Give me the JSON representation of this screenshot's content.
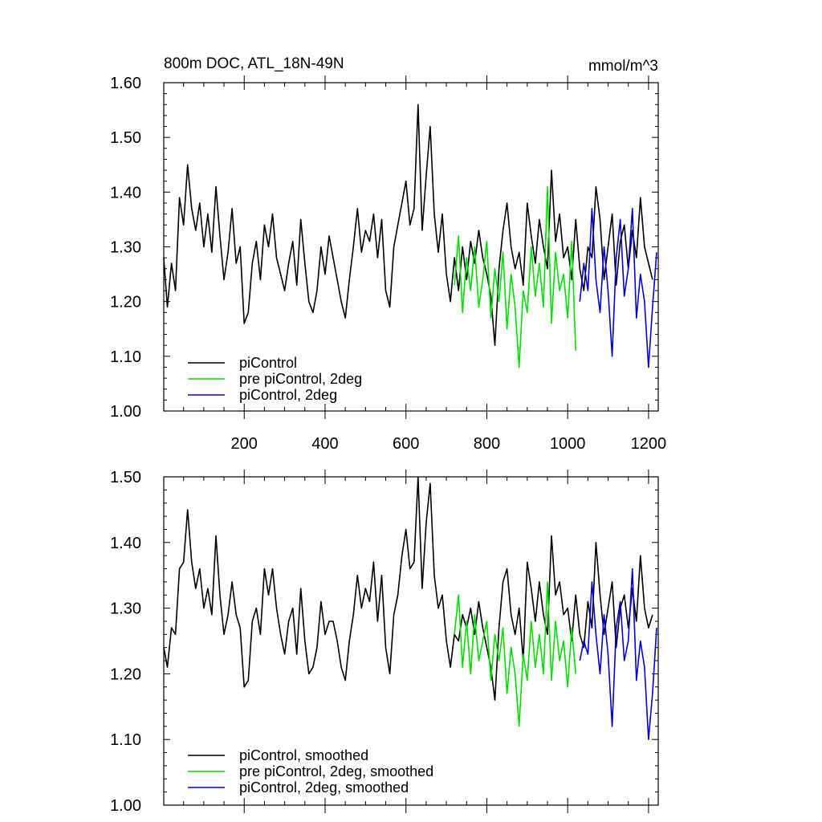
{
  "chart_data": [
    {
      "type": "line",
      "title": "800m DOC, ATL_18N-49N",
      "units": "mmol/m^3",
      "xlim": [
        1,
        1224
      ],
      "ylim": [
        1.0,
        1.6
      ],
      "yticks": [
        1.0,
        1.1,
        1.2,
        1.3,
        1.4,
        1.5,
        1.6
      ],
      "ytick_labels": [
        "1.00",
        "1.10",
        "1.20",
        "1.30",
        "1.40",
        "1.50",
        "1.60"
      ],
      "xticks": [
        200,
        400,
        600,
        800,
        1000,
        1200
      ],
      "xtick_labels": [
        "200",
        "400",
        "600",
        "800",
        "1000",
        "1200"
      ],
      "legend_position": "bottom-left",
      "series": [
        {
          "name": "piControl",
          "color": "#000000",
          "x": [
            1,
            10,
            20,
            30,
            40,
            50,
            60,
            70,
            80,
            90,
            100,
            110,
            120,
            130,
            140,
            150,
            160,
            170,
            180,
            190,
            200,
            210,
            220,
            230,
            240,
            250,
            260,
            270,
            280,
            290,
            300,
            310,
            320,
            330,
            340,
            350,
            360,
            370,
            380,
            390,
            400,
            410,
            420,
            430,
            440,
            450,
            460,
            470,
            480,
            490,
            500,
            510,
            520,
            530,
            540,
            550,
            560,
            570,
            580,
            590,
            600,
            610,
            620,
            630,
            640,
            650,
            660,
            670,
            680,
            690,
            700,
            710,
            720,
            730,
            740,
            750,
            760,
            770,
            780,
            790,
            800,
            810,
            820,
            830,
            840,
            850,
            860,
            870,
            880,
            890,
            900,
            910,
            920,
            930,
            940,
            950,
            960,
            970,
            980,
            990,
            1000,
            1010,
            1020,
            1030,
            1040,
            1050,
            1060,
            1070,
            1080,
            1090,
            1100,
            1110,
            1120,
            1130,
            1140,
            1150,
            1160,
            1170,
            1180,
            1190,
            1200,
            1210
          ],
          "values": [
            1.28,
            1.19,
            1.27,
            1.22,
            1.39,
            1.34,
            1.45,
            1.37,
            1.33,
            1.38,
            1.3,
            1.36,
            1.29,
            1.41,
            1.32,
            1.24,
            1.29,
            1.37,
            1.27,
            1.3,
            1.16,
            1.18,
            1.27,
            1.31,
            1.24,
            1.34,
            1.3,
            1.36,
            1.28,
            1.25,
            1.22,
            1.27,
            1.31,
            1.23,
            1.35,
            1.27,
            1.2,
            1.18,
            1.22,
            1.3,
            1.25,
            1.32,
            1.28,
            1.24,
            1.2,
            1.17,
            1.24,
            1.3,
            1.37,
            1.29,
            1.33,
            1.31,
            1.36,
            1.28,
            1.35,
            1.22,
            1.19,
            1.3,
            1.34,
            1.38,
            1.42,
            1.34,
            1.37,
            1.56,
            1.33,
            1.43,
            1.52,
            1.36,
            1.29,
            1.36,
            1.25,
            1.2,
            1.28,
            1.22,
            1.3,
            1.24,
            1.31,
            1.27,
            1.33,
            1.28,
            1.25,
            1.21,
            1.12,
            1.26,
            1.33,
            1.38,
            1.3,
            1.26,
            1.29,
            1.23,
            1.38,
            1.32,
            1.27,
            1.35,
            1.3,
            1.26,
            1.44,
            1.31,
            1.36,
            1.28,
            1.3,
            1.24,
            1.35,
            1.26,
            1.22,
            1.3,
            1.28,
            1.41,
            1.35,
            1.24,
            1.3,
            1.36,
            1.23,
            1.31,
            1.34,
            1.26,
            1.33,
            1.28,
            1.39,
            1.3,
            1.27,
            1.24
          ]
        },
        {
          "name": "pre piControl, 2deg",
          "color": "#00e000",
          "x": [
            720,
            730,
            740,
            750,
            760,
            770,
            780,
            790,
            800,
            810,
            820,
            830,
            840,
            850,
            860,
            870,
            880,
            890,
            900,
            910,
            920,
            930,
            940,
            950,
            960,
            970,
            980,
            990,
            1000,
            1010,
            1020
          ],
          "values": [
            1.23,
            1.32,
            1.18,
            1.28,
            1.22,
            1.3,
            1.19,
            1.24,
            1.31,
            1.17,
            1.26,
            1.2,
            1.29,
            1.15,
            1.25,
            1.19,
            1.08,
            1.22,
            1.18,
            1.3,
            1.21,
            1.27,
            1.19,
            1.41,
            1.16,
            1.29,
            1.22,
            1.25,
            1.17,
            1.31,
            1.11
          ]
        },
        {
          "name": "piControl, 2deg",
          "color": "#0000dd",
          "x": [
            1030,
            1040,
            1050,
            1060,
            1070,
            1080,
            1090,
            1100,
            1110,
            1120,
            1130,
            1140,
            1150,
            1160,
            1170,
            1180,
            1190,
            1200,
            1210,
            1220
          ],
          "values": [
            1.2,
            1.27,
            1.22,
            1.37,
            1.24,
            1.18,
            1.3,
            1.22,
            1.1,
            1.28,
            1.35,
            1.21,
            1.26,
            1.37,
            1.17,
            1.25,
            1.2,
            1.08,
            1.19,
            1.29
          ]
        }
      ]
    },
    {
      "type": "line",
      "xlim": [
        1,
        1224
      ],
      "ylim": [
        1.0,
        1.5
      ],
      "yticks": [
        1.0,
        1.1,
        1.2,
        1.3,
        1.4,
        1.5
      ],
      "ytick_labels": [
        "1.00",
        "1.10",
        "1.20",
        "1.30",
        "1.40",
        "1.50"
      ],
      "xticks": [
        200,
        400,
        600,
        800,
        1000,
        1200
      ],
      "legend_position": "bottom-left",
      "series": [
        {
          "name": "piControl, smoothed",
          "color": "#000000",
          "x": [
            1,
            10,
            20,
            30,
            40,
            50,
            60,
            70,
            80,
            90,
            100,
            110,
            120,
            130,
            140,
            150,
            160,
            170,
            180,
            190,
            200,
            210,
            220,
            230,
            240,
            250,
            260,
            270,
            280,
            290,
            300,
            310,
            320,
            330,
            340,
            350,
            360,
            370,
            380,
            390,
            400,
            410,
            420,
            430,
            440,
            450,
            460,
            470,
            480,
            490,
            500,
            510,
            520,
            530,
            540,
            550,
            560,
            570,
            580,
            590,
            600,
            610,
            620,
            630,
            640,
            650,
            660,
            670,
            680,
            690,
            700,
            710,
            720,
            730,
            740,
            750,
            760,
            770,
            780,
            790,
            800,
            810,
            820,
            830,
            840,
            850,
            860,
            870,
            880,
            890,
            900,
            910,
            920,
            930,
            940,
            950,
            960,
            970,
            980,
            990,
            1000,
            1010,
            1020,
            1030,
            1040,
            1050,
            1060,
            1070,
            1080,
            1090,
            1100,
            1110,
            1120,
            1130,
            1140,
            1150,
            1160,
            1170,
            1180,
            1190,
            1200,
            1210
          ],
          "values": [
            1.24,
            1.21,
            1.27,
            1.26,
            1.36,
            1.37,
            1.45,
            1.37,
            1.33,
            1.36,
            1.3,
            1.33,
            1.29,
            1.41,
            1.32,
            1.26,
            1.29,
            1.34,
            1.29,
            1.27,
            1.18,
            1.19,
            1.28,
            1.3,
            1.26,
            1.36,
            1.32,
            1.36,
            1.3,
            1.26,
            1.23,
            1.28,
            1.3,
            1.23,
            1.33,
            1.25,
            1.2,
            1.21,
            1.24,
            1.31,
            1.26,
            1.28,
            1.28,
            1.25,
            1.21,
            1.19,
            1.25,
            1.29,
            1.35,
            1.3,
            1.33,
            1.31,
            1.37,
            1.28,
            1.35,
            1.24,
            1.2,
            1.29,
            1.32,
            1.38,
            1.42,
            1.36,
            1.37,
            1.5,
            1.33,
            1.43,
            1.49,
            1.35,
            1.3,
            1.32,
            1.25,
            1.21,
            1.26,
            1.25,
            1.29,
            1.27,
            1.3,
            1.26,
            1.31,
            1.27,
            1.24,
            1.21,
            1.16,
            1.27,
            1.34,
            1.36,
            1.29,
            1.26,
            1.3,
            1.22,
            1.37,
            1.33,
            1.28,
            1.34,
            1.29,
            1.26,
            1.41,
            1.32,
            1.34,
            1.29,
            1.3,
            1.25,
            1.32,
            1.26,
            1.24,
            1.31,
            1.27,
            1.4,
            1.32,
            1.26,
            1.3,
            1.34,
            1.24,
            1.3,
            1.32,
            1.27,
            1.33,
            1.28,
            1.38,
            1.3,
            1.27,
            1.29
          ]
        },
        {
          "name": "pre piControl, 2deg, smoothed",
          "color": "#00e000",
          "x": [
            720,
            730,
            740,
            750,
            760,
            770,
            780,
            790,
            800,
            810,
            820,
            830,
            840,
            850,
            860,
            870,
            880,
            890,
            900,
            910,
            920,
            930,
            940,
            950,
            960,
            970,
            980,
            990,
            1000,
            1010,
            1020
          ],
          "values": [
            1.26,
            1.32,
            1.21,
            1.28,
            1.2,
            1.29,
            1.22,
            1.25,
            1.28,
            1.19,
            1.26,
            1.22,
            1.27,
            1.17,
            1.24,
            1.2,
            1.12,
            1.23,
            1.19,
            1.28,
            1.21,
            1.26,
            1.2,
            1.34,
            1.19,
            1.28,
            1.22,
            1.25,
            1.18,
            1.27,
            1.2
          ]
        },
        {
          "name": "piControl, 2deg, smoothed",
          "color": "#0000dd",
          "x": [
            1030,
            1040,
            1050,
            1060,
            1070,
            1080,
            1090,
            1100,
            1110,
            1120,
            1130,
            1140,
            1150,
            1160,
            1170,
            1180,
            1190,
            1200,
            1210,
            1220
          ],
          "values": [
            1.22,
            1.25,
            1.23,
            1.34,
            1.26,
            1.2,
            1.29,
            1.23,
            1.12,
            1.27,
            1.31,
            1.22,
            1.25,
            1.36,
            1.19,
            1.25,
            1.21,
            1.1,
            1.17,
            1.27
          ]
        }
      ]
    }
  ]
}
